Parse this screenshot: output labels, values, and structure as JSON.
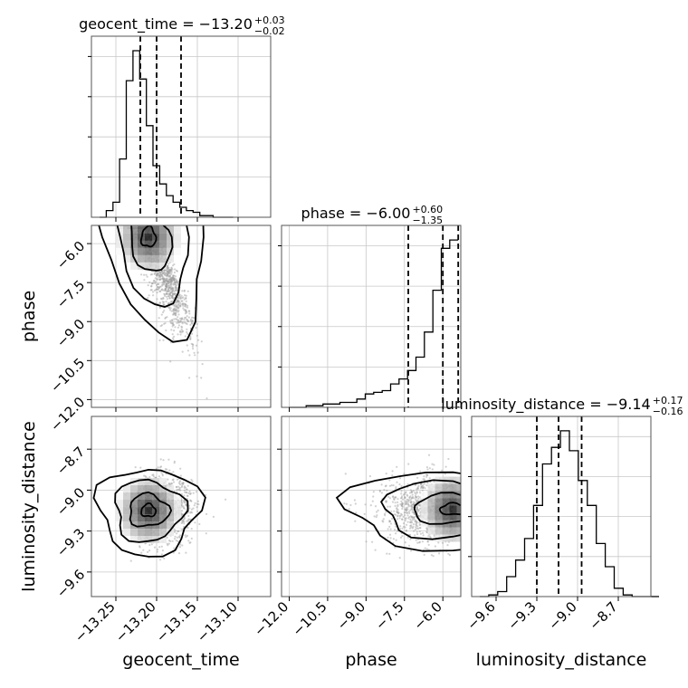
{
  "chart_data": {
    "type": "corner",
    "parameters": [
      "geocent_time",
      "phase",
      "luminosity_distance"
    ],
    "ranges": {
      "geocent_time": [
        -13.28,
        -13.06
      ],
      "phase": [
        -12.3,
        -5.3
      ],
      "luminosity_distance": [
        -9.78,
        -8.46
      ]
    },
    "ticks": {
      "geocent_time": {
        "values": [
          -13.25,
          -13.2,
          -13.15,
          -13.1
        ],
        "labels": [
          "−13.25",
          "−13.20",
          "−13.15",
          "−13.10"
        ]
      },
      "phase": {
        "values": [
          -12.0,
          -10.5,
          -9.0,
          -7.5,
          -6.0
        ],
        "labels": [
          "−12.0",
          "−10.5",
          "−9.0",
          "−7.5",
          "−6.0"
        ]
      },
      "luminosity_distance": {
        "values": [
          -9.6,
          -9.3,
          -9.0,
          -8.7
        ],
        "labels": [
          "−9.6",
          "−9.3",
          "−9.0",
          "−8.7"
        ]
      }
    },
    "titles": [
      {
        "param": "geocent_time",
        "text": "geocent_time = −13.20",
        "sup": "+0.03",
        "sub": "−0.02"
      },
      {
        "param": "phase",
        "text": "phase = −6.00",
        "sup": "+0.60",
        "sub": "−1.35"
      },
      {
        "param": "luminosity_distance",
        "text": "luminosity_distance = −9.14",
        "sup": "+0.17",
        "sub": "−0.16"
      }
    ],
    "quantiles": {
      "geocent_time": [
        -13.22,
        -13.2,
        -13.17
      ],
      "phase": [
        -7.35,
        -6.0,
        -5.4
      ],
      "luminosity_distance": [
        -9.3,
        -9.14,
        -8.97
      ]
    },
    "histograms": {
      "geocent_time": {
        "start": -13.27,
        "width": 0.0082,
        "counts": [
          0,
          4,
          9,
          35,
          82,
          100,
          83,
          55,
          31,
          20,
          13,
          9,
          6,
          4,
          3,
          1,
          1,
          0,
          0,
          0
        ]
      },
      "phase": {
        "start": -12.0,
        "width": 0.33,
        "counts": [
          0,
          0,
          1,
          1,
          2,
          2,
          3,
          3,
          5,
          8,
          9,
          10,
          14,
          17,
          22,
          30,
          45,
          70,
          95,
          100
        ]
      },
      "luminosity_distance": {
        "start": -9.72,
        "width": 0.066,
        "counts": [
          0,
          1,
          3,
          12,
          22,
          35,
          55,
          80,
          90,
          100,
          88,
          70,
          55,
          32,
          18,
          5,
          1,
          0,
          0,
          0
        ]
      }
    },
    "posterior_peaks": {
      "phase_vs_geocent_time": {
        "x": -13.21,
        "y": -5.75
      },
      "luminosity_distance_vs_geocent_time": {
        "x": -13.21,
        "y": -9.15
      },
      "luminosity_distance_vs_phase": {
        "x": -5.6,
        "y": -9.14
      }
    }
  }
}
